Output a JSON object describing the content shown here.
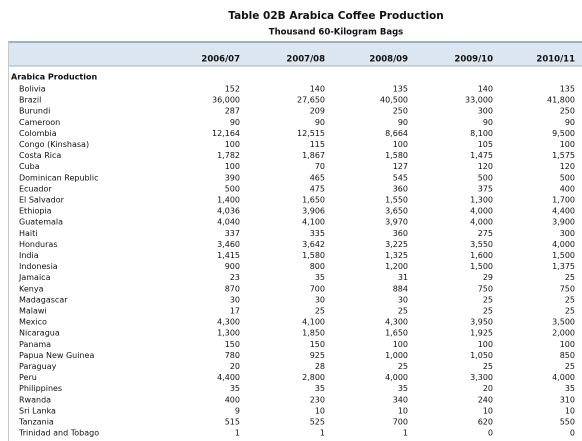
{
  "header": {
    "title": "Table 02B Arabica Coffee Production",
    "subtitle": "Thousand 60-Kilogram Bags"
  },
  "table": {
    "columns": [
      "2006/07",
      "2007/08",
      "2008/09",
      "2009/10",
      "2010/11"
    ],
    "section": "Arabica Production",
    "rows": [
      [
        "Bolivia",
        "152",
        "140",
        "135",
        "140",
        "135"
      ],
      [
        "Brazil",
        "36,000",
        "27,650",
        "40,500",
        "33,000",
        "41,800"
      ],
      [
        "Burundi",
        "287",
        "209",
        "250",
        "300",
        "250"
      ],
      [
        "Cameroon",
        "90",
        "90",
        "90",
        "90",
        "90"
      ],
      [
        "Colombia",
        "12,164",
        "12,515",
        "8,664",
        "8,100",
        "9,500"
      ],
      [
        "Congo (Kinshasa)",
        "100",
        "115",
        "100",
        "105",
        "100"
      ],
      [
        "Costa Rica",
        "1,782",
        "1,867",
        "1,580",
        "1,475",
        "1,575"
      ],
      [
        "Cuba",
        "100",
        "70",
        "127",
        "120",
        "120"
      ],
      [
        "Dominican Republic",
        "390",
        "465",
        "545",
        "500",
        "500"
      ],
      [
        "Ecuador",
        "500",
        "475",
        "360",
        "375",
        "400"
      ],
      [
        "El Salvador",
        "1,400",
        "1,650",
        "1,550",
        "1,300",
        "1,700"
      ],
      [
        "Ethiopia",
        "4,036",
        "3,906",
        "3,650",
        "4,000",
        "4,400"
      ],
      [
        "Guatemala",
        "4,040",
        "4,100",
        "3,970",
        "4,000",
        "3,900"
      ],
      [
        "Haiti",
        "337",
        "335",
        "360",
        "275",
        "300"
      ],
      [
        "Honduras",
        "3,460",
        "3,642",
        "3,225",
        "3,550",
        "4,000"
      ],
      [
        "India",
        "1,415",
        "1,580",
        "1,325",
        "1,600",
        "1,500"
      ],
      [
        "Indonesia",
        "900",
        "800",
        "1,200",
        "1,500",
        "1,375"
      ],
      [
        "Jamaica",
        "23",
        "35",
        "31",
        "29",
        "25"
      ],
      [
        "Kenya",
        "870",
        "700",
        "884",
        "750",
        "750"
      ],
      [
        "Madagascar",
        "30",
        "30",
        "30",
        "25",
        "25"
      ],
      [
        "Malawi",
        "17",
        "25",
        "25",
        "25",
        "25"
      ],
      [
        "Mexico",
        "4,300",
        "4,100",
        "4,300",
        "3,950",
        "3,500"
      ],
      [
        "Nicaragua",
        "1,300",
        "1,850",
        "1,650",
        "1,925",
        "2,000"
      ],
      [
        "Panama",
        "150",
        "150",
        "100",
        "100",
        "100"
      ],
      [
        "Papua New Guinea",
        "780",
        "925",
        "1,000",
        "1,050",
        "850"
      ],
      [
        "Paraguay",
        "20",
        "28",
        "25",
        "25",
        "25"
      ],
      [
        "Peru",
        "4,400",
        "2,800",
        "4,000",
        "3,300",
        "4,000"
      ],
      [
        "Philippines",
        "35",
        "35",
        "35",
        "20",
        "35"
      ],
      [
        "Rwanda",
        "400",
        "230",
        "340",
        "240",
        "310"
      ],
      [
        "Sri Lanka",
        "9",
        "10",
        "10",
        "10",
        "10"
      ],
      [
        "Tanzania",
        "515",
        "525",
        "700",
        "620",
        "550"
      ],
      [
        "Trinidad and Tobago",
        "1",
        "1",
        "1",
        "0",
        "0"
      ]
    ]
  }
}
